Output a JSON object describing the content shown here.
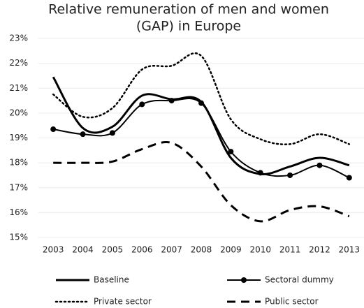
{
  "chart_data": {
    "type": "line",
    "title": [
      "Relative remuneration of men and women",
      "(GAP) in Europe"
    ],
    "categories": [
      "2003",
      "2004",
      "2005",
      "2006",
      "2007",
      "2008",
      "2009",
      "2010",
      "2011",
      "2012",
      "2013"
    ],
    "series": [
      {
        "name": "Baseline",
        "color": "#000000",
        "line_style": "solid",
        "width": 3,
        "values": [
          21.45,
          19.4,
          19.45,
          20.7,
          20.55,
          20.45,
          18.2,
          17.55,
          17.85,
          18.2,
          17.9
        ]
      },
      {
        "name": "Sectoral dummy",
        "color": "#000000",
        "line_style": "solid",
        "width": 2,
        "marker": "circle",
        "values": [
          19.35,
          19.15,
          19.2,
          20.35,
          20.5,
          20.4,
          18.45,
          17.6,
          17.5,
          17.9,
          17.4
        ]
      },
      {
        "name": "Private sector",
        "color": "#000000",
        "line_style": "dotted",
        "width": 2.5,
        "values": [
          20.75,
          19.85,
          20.2,
          21.75,
          21.9,
          22.3,
          19.75,
          18.95,
          18.75,
          19.15,
          18.75
        ]
      },
      {
        "name": "Public sector",
        "color": "#000000",
        "line_style": "dashed",
        "width": 3,
        "values": [
          18.0,
          18.0,
          18.05,
          18.55,
          18.8,
          17.85,
          16.3,
          15.65,
          16.1,
          16.25,
          15.85
        ]
      }
    ],
    "ylim": [
      15,
      23
    ],
    "yticks": [
      {
        "value": 15,
        "label": "15%"
      },
      {
        "value": 16,
        "label": "16%"
      },
      {
        "value": 17,
        "label": "17%"
      },
      {
        "value": 18,
        "label": "18%"
      },
      {
        "value": 19,
        "label": "19%"
      },
      {
        "value": 20,
        "label": "20%"
      },
      {
        "value": 21,
        "label": "21%"
      },
      {
        "value": 22,
        "label": "22%"
      },
      {
        "value": 23,
        "label": "23%"
      }
    ],
    "grid": true,
    "legend": "bottom"
  }
}
